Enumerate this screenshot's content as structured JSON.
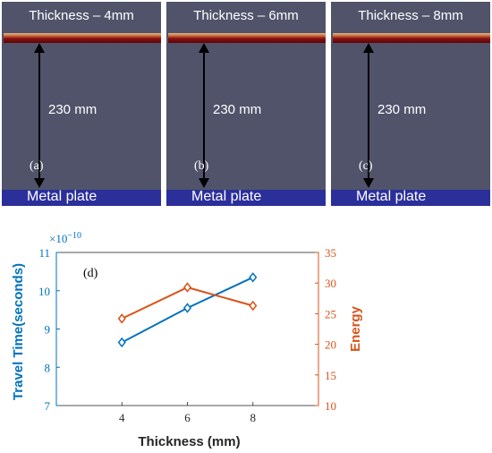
{
  "panels": [
    {
      "title": "Thickness – 4mm",
      "distance": "230 mm",
      "letter": "(a)",
      "plate": "Metal plate"
    },
    {
      "title": "Thickness – 6mm",
      "distance": "230 mm",
      "letter": "(b)",
      "plate": "Metal plate"
    },
    {
      "title": "Thickness – 8mm",
      "distance": "230 mm",
      "letter": "(c)",
      "plate": "Metal plate"
    }
  ],
  "chart_data": {
    "type": "line",
    "panel_label": "(d)",
    "x": [
      4,
      6,
      8
    ],
    "xlabel": "Thickness (mm)",
    "xlim": [
      2,
      10
    ],
    "xticks": [
      4,
      6,
      8
    ],
    "series": [
      {
        "values": [
          8.65,
          9.55,
          10.35
        ],
        "axis": "left",
        "color": "#0072bd",
        "marker": "diamond"
      },
      {
        "values": [
          24.2,
          29.3,
          26.3
        ],
        "axis": "right",
        "color": "#d95319",
        "marker": "diamond"
      }
    ],
    "y_left": {
      "label": "Travel Time(seconds)",
      "exponent": "×10",
      "exponent_power": "−10",
      "lim": [
        7,
        11
      ],
      "ticks": [
        "7",
        "8",
        "9",
        "10",
        "11"
      ],
      "color": "#0072bd"
    },
    "y_right": {
      "label": "Energy",
      "lim": [
        10,
        35
      ],
      "ticks": [
        "10",
        "15",
        "20",
        "25",
        "30",
        "35"
      ],
      "color": "#d95319"
    }
  }
}
